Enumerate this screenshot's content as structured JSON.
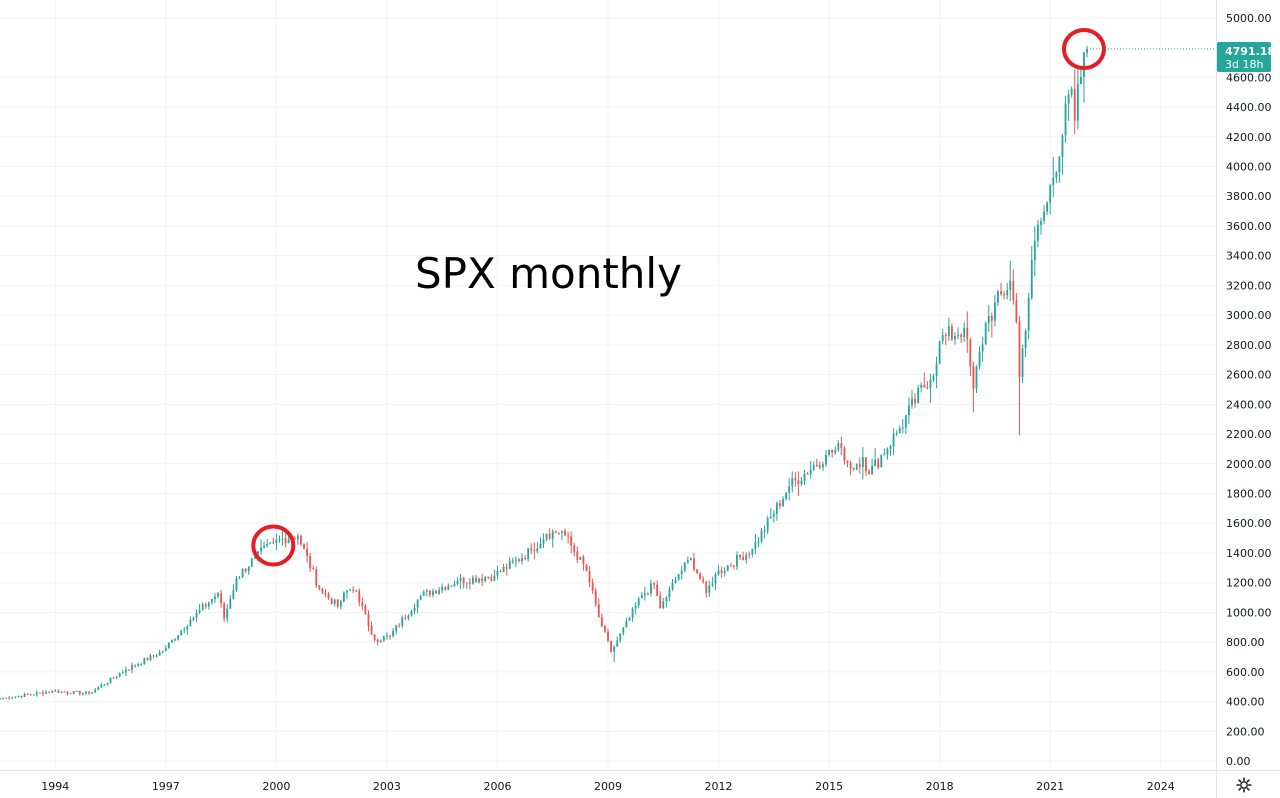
{
  "colors": {
    "up": "#26a69a",
    "down": "#ef5350",
    "grid": "#f0f3fa",
    "axis_line": "#e0e3eb",
    "text": "#131722",
    "annotation": "#e31e24",
    "price_box": "#26a69a"
  },
  "icons": {
    "settings": "gear-icon"
  },
  "chart_data": {
    "type": "candlestick",
    "title": "SPX monthly",
    "interval": "monthly",
    "ylim": [
      -60,
      5120
    ],
    "xlim": [
      1992.5,
      2025.5
    ],
    "y_ticks": [
      0,
      200,
      400,
      600,
      800,
      1000,
      1200,
      1400,
      1600,
      1800,
      2000,
      2200,
      2400,
      2600,
      2800,
      3000,
      3200,
      3400,
      3600,
      3800,
      4000,
      4200,
      4400,
      4600,
      5000
    ],
    "y_tick_labels": [
      "0.00",
      "200.00",
      "400.00",
      "600.00",
      "800.00",
      "1000.00",
      "1200.00",
      "1400.00",
      "1600.00",
      "1800.00",
      "2000.00",
      "2200.00",
      "2400.00",
      "2600.00",
      "2800.00",
      "3000.00",
      "3200.00",
      "3400.00",
      "3600.00",
      "3800.00",
      "4000.00",
      "4200.00",
      "4400.00",
      "4600.00",
      "5000.00"
    ],
    "x_ticks": [
      1994,
      1997,
      2000,
      2003,
      2006,
      2009,
      2012,
      2015,
      2018,
      2021,
      2024
    ],
    "x_tick_labels": [
      "1994",
      "1997",
      "2000",
      "2003",
      "2006",
      "2009",
      "2012",
      "2015",
      "2018",
      "2021",
      "2024"
    ],
    "last_price": {
      "value": 4791.18,
      "label": "4791.18",
      "countdown": "3d 18h"
    },
    "annotations": [
      {
        "type": "circle",
        "date": "1999-12",
        "value": 1450
      },
      {
        "type": "circle",
        "date": "2021-12",
        "value": 4790
      }
    ],
    "anchors": [
      [
        "1992-07",
        420
      ],
      [
        "1993-12",
        470
      ],
      [
        "1994-12",
        455
      ],
      [
        "1995-12",
        615
      ],
      [
        "1996-12",
        740
      ],
      [
        "1997-09",
        950
      ],
      [
        "1998-06",
        1130
      ],
      [
        "1998-08",
        960
      ],
      [
        "1998-12",
        1230
      ],
      [
        "1999-06",
        1370
      ],
      [
        "1999-12",
        1469
      ],
      [
        "2000-03",
        1498
      ],
      [
        "2000-08",
        1517
      ],
      [
        "2001-03",
        1160
      ],
      [
        "2001-09",
        1040
      ],
      [
        "2001-12",
        1148
      ],
      [
        "2002-03",
        1147
      ],
      [
        "2002-07",
        910
      ],
      [
        "2002-09",
        815
      ],
      [
        "2003-02",
        841
      ],
      [
        "2003-12",
        1112
      ],
      [
        "2004-12",
        1212
      ],
      [
        "2005-12",
        1248
      ],
      [
        "2006-12",
        1418
      ],
      [
        "2007-05",
        1530
      ],
      [
        "2007-10",
        1549
      ],
      [
        "2008-06",
        1280
      ],
      [
        "2008-10",
        968
      ],
      [
        "2009-02",
        735
      ],
      [
        "2009-12",
        1115
      ],
      [
        "2010-04",
        1187
      ],
      [
        "2010-06",
        1030
      ],
      [
        "2010-12",
        1258
      ],
      [
        "2011-04",
        1364
      ],
      [
        "2011-09",
        1131
      ],
      [
        "2011-12",
        1258
      ],
      [
        "2012-12",
        1426
      ],
      [
        "2013-12",
        1848
      ],
      [
        "2014-12",
        2059
      ],
      [
        "2015-05",
        2107
      ],
      [
        "2015-08",
        1972
      ],
      [
        "2015-12",
        2044
      ],
      [
        "2016-02",
        1932
      ],
      [
        "2016-12",
        2239
      ],
      [
        "2017-12",
        2674
      ],
      [
        "2018-01",
        2824
      ],
      [
        "2018-09",
        2914
      ],
      [
        "2018-12",
        2507
      ],
      [
        "2019-04",
        2946
      ],
      [
        "2019-12",
        3231
      ],
      [
        "2020-02",
        2954
      ],
      [
        "2020-03",
        2585
      ],
      [
        "2020-08",
        3500
      ],
      [
        "2020-12",
        3756
      ],
      [
        "2021-08",
        4523
      ],
      [
        "2021-09",
        4308
      ],
      [
        "2021-12",
        4766
      ],
      [
        "2022-01",
        4791
      ]
    ],
    "extreme_lows": [
      [
        "2020-03",
        2192
      ],
      [
        "2009-03",
        667
      ],
      [
        "2018-12",
        2346
      ]
    ]
  }
}
